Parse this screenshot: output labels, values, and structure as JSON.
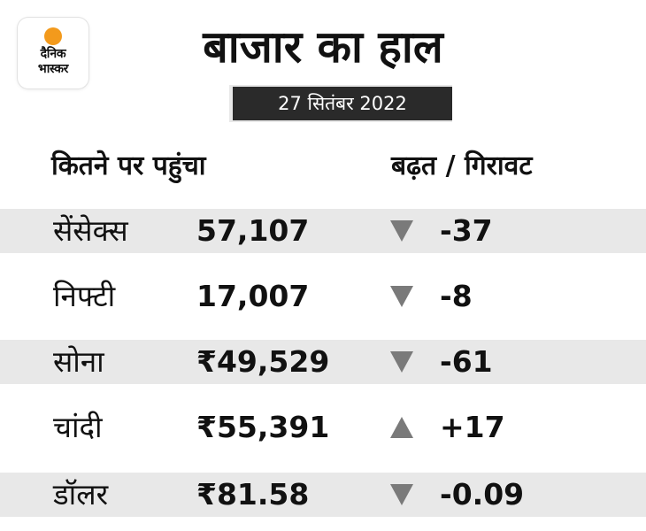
{
  "logo": {
    "line1": "दैनिक",
    "line2": "भास्कर"
  },
  "title": "बाजार का हाल",
  "date": "27 सितंबर 2022",
  "headers": {
    "left": "कितने पर पहुंचा",
    "right": "बढ़त / गिरावट"
  },
  "rows": [
    {
      "name": "सेंसेक्स",
      "value": "57,107",
      "direction": "down",
      "change": "-37"
    },
    {
      "name": "निफ्टी",
      "value": "17,007",
      "direction": "down",
      "change": "-8"
    },
    {
      "name": "सोना",
      "value": "₹49,529",
      "direction": "down",
      "change": "-61"
    },
    {
      "name": "चांदी",
      "value": "₹55,391",
      "direction": "up",
      "change": "+17"
    },
    {
      "name": "डॉलर",
      "value": "₹81.58",
      "direction": "down",
      "change": "-0.09"
    }
  ],
  "colors": {
    "accent": "#f39a1c",
    "shade": "#e8e8e8",
    "date_bg": "#2a2a2a",
    "arrow": "#7a7a7a"
  }
}
